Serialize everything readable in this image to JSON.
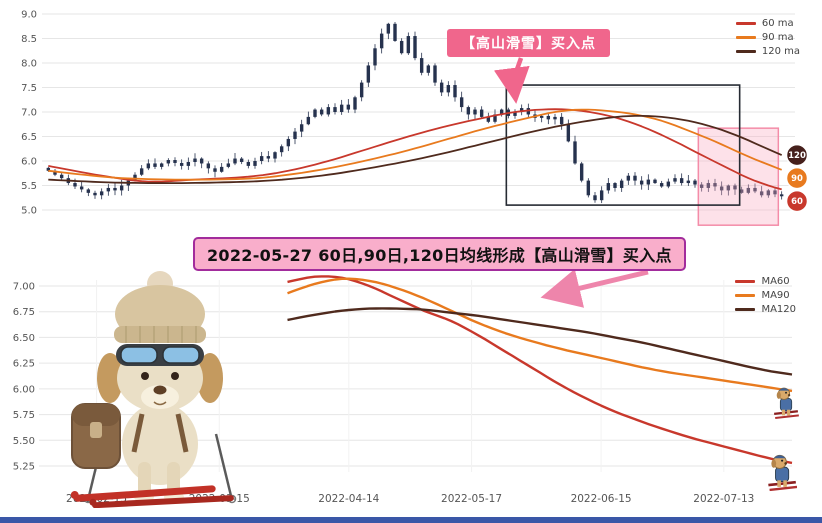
{
  "page": {
    "bg": "#ffffff",
    "footer_strip_color": "#3a57a7"
  },
  "top_annotation": {
    "text": "【高山滑雪】买入点",
    "bg": "#f0668c",
    "text_color": "#ffffff",
    "arrow_color": "#f0668c"
  },
  "middle_banner": {
    "text": "2022-05-27 60日,90日,120日均线形成【高山滑雪】买入点",
    "bg": "#f9aecb",
    "border": "#a22c9c",
    "text_color": "#111111",
    "arrow_color": "#ee85ab"
  },
  "illustrations": {
    "main_dog_alt": "puppy wearing knit hat, ski goggles and backpack standing on red skis",
    "mini_dog_alt": "small skiing dog figure"
  },
  "chart_data": [
    {
      "type": "candlestick",
      "title": "",
      "xlabel": "",
      "ylabel": "",
      "ylim": [
        4.6,
        9.0
      ],
      "yticks": [
        5.0,
        5.5,
        6.0,
        6.5,
        7.0,
        7.5,
        8.0,
        8.5,
        9.0
      ],
      "tick_decimals": 1,
      "grid": true,
      "legend_position": "top-right",
      "candle_color": "#26324e",
      "closes": [
        5.8,
        5.72,
        5.65,
        5.55,
        5.48,
        5.42,
        5.35,
        5.3,
        5.38,
        5.45,
        5.4,
        5.5,
        5.6,
        5.72,
        5.85,
        5.95,
        5.88,
        5.95,
        6.02,
        5.96,
        5.9,
        5.98,
        6.05,
        5.95,
        5.85,
        5.78,
        5.88,
        5.95,
        6.05,
        5.98,
        5.9,
        6.0,
        6.1,
        6.05,
        6.18,
        6.3,
        6.45,
        6.6,
        6.75,
        6.9,
        7.05,
        6.95,
        7.1,
        7.0,
        7.15,
        7.05,
        7.3,
        7.6,
        7.95,
        8.3,
        8.6,
        8.8,
        8.45,
        8.2,
        8.55,
        8.1,
        7.8,
        7.95,
        7.6,
        7.4,
        7.55,
        7.3,
        7.1,
        6.95,
        7.05,
        6.9,
        6.8,
        6.95,
        7.05,
        6.92,
        7.0,
        7.08,
        6.95,
        6.88,
        6.92,
        6.85,
        6.9,
        6.75,
        6.4,
        5.95,
        5.6,
        5.3,
        5.2,
        5.4,
        5.55,
        5.45,
        5.6,
        5.7,
        5.6,
        5.52,
        5.62,
        5.55,
        5.48,
        5.58,
        5.65,
        5.55,
        5.6,
        5.52,
        5.45,
        5.55,
        5.48,
        5.4,
        5.5,
        5.42,
        5.35,
        5.45,
        5.38,
        5.3,
        5.4,
        5.32,
        5.28
      ],
      "series": [
        {
          "name": "60 ma",
          "color": "#c8382c",
          "points": [
            [
              0,
              5.9
            ],
            [
              8,
              5.7
            ],
            [
              15,
              5.58
            ],
            [
              22,
              5.62
            ],
            [
              30,
              5.68
            ],
            [
              36,
              5.8
            ],
            [
              42,
              6.0
            ],
            [
              48,
              6.25
            ],
            [
              54,
              6.5
            ],
            [
              60,
              6.72
            ],
            [
              66,
              6.9
            ],
            [
              70,
              7.0
            ],
            [
              74,
              7.05
            ],
            [
              78,
              7.05
            ],
            [
              82,
              6.98
            ],
            [
              86,
              6.85
            ],
            [
              90,
              6.65
            ],
            [
              94,
              6.4
            ],
            [
              98,
              6.12
            ],
            [
              102,
              5.85
            ],
            [
              105,
              5.65
            ],
            [
              108,
              5.5
            ],
            [
              110,
              5.42
            ]
          ]
        },
        {
          "name": "90 ma",
          "color": "#e87a1e",
          "points": [
            [
              0,
              5.8
            ],
            [
              10,
              5.66
            ],
            [
              20,
              5.62
            ],
            [
              30,
              5.64
            ],
            [
              36,
              5.72
            ],
            [
              42,
              5.85
            ],
            [
              48,
              6.02
            ],
            [
              54,
              6.22
            ],
            [
              60,
              6.45
            ],
            [
              66,
              6.68
            ],
            [
              72,
              6.88
            ],
            [
              76,
              7.0
            ],
            [
              80,
              7.05
            ],
            [
              84,
              7.02
            ],
            [
              88,
              6.95
            ],
            [
              92,
              6.82
            ],
            [
              96,
              6.62
            ],
            [
              100,
              6.4
            ],
            [
              104,
              6.15
            ],
            [
              107,
              5.98
            ],
            [
              110,
              5.82
            ]
          ]
        },
        {
          "name": "120 ma",
          "color": "#4f2a1d",
          "points": [
            [
              0,
              5.62
            ],
            [
              10,
              5.56
            ],
            [
              20,
              5.55
            ],
            [
              30,
              5.58
            ],
            [
              36,
              5.63
            ],
            [
              42,
              5.72
            ],
            [
              48,
              5.85
            ],
            [
              54,
              6.0
            ],
            [
              60,
              6.18
            ],
            [
              66,
              6.38
            ],
            [
              72,
              6.58
            ],
            [
              78,
              6.75
            ],
            [
              84,
              6.88
            ],
            [
              88,
              6.92
            ],
            [
              92,
              6.9
            ],
            [
              96,
              6.82
            ],
            [
              100,
              6.68
            ],
            [
              104,
              6.48
            ],
            [
              107,
              6.3
            ],
            [
              110,
              6.12
            ]
          ]
        }
      ],
      "highlight_box": {
        "x_index": [
          69,
          104
        ],
        "y_values": [
          5.1,
          7.55
        ],
        "stroke": "#262b33"
      },
      "pink_box": {
        "x_index": [
          97.5,
          109.5
        ],
        "y_values": [
          4.69,
          6.67
        ],
        "fill": "#f8a8bf",
        "stroke": "#f48ca8",
        "opacity": 0.35
      },
      "badges": [
        {
          "label": "120",
          "value": 6.12,
          "color": "#46201c"
        },
        {
          "label": "90",
          "value": 5.82,
          "color": "#e87a1e"
        },
        {
          "label": "60",
          "value": 5.42,
          "color": "#c8382c"
        }
      ],
      "buy_arrow_index": 70
    },
    {
      "type": "line",
      "title": "",
      "xlabel": "",
      "ylabel": "",
      "ylim": [
        5.2,
        7.1
      ],
      "yticks": [
        5.25,
        5.5,
        5.75,
        6.0,
        6.25,
        6.5,
        6.75,
        7.0
      ],
      "tick_decimals": 2,
      "grid": true,
      "legend_position": "top-right",
      "x_range": [
        0,
        110
      ],
      "x_ticks": [
        {
          "index": 8,
          "label": "2022-02-15"
        },
        {
          "index": 26,
          "label": "2022-03-15"
        },
        {
          "index": 45,
          "label": "2022-04-14"
        },
        {
          "index": 63,
          "label": "2022-05-17"
        },
        {
          "index": 82,
          "label": "2022-06-15"
        },
        {
          "index": 100,
          "label": "2022-07-13"
        }
      ],
      "series": [
        {
          "name": "MA60",
          "color": "#c8382c",
          "points": [
            [
              36,
              7.04
            ],
            [
              40,
              7.09
            ],
            [
              44,
              7.08
            ],
            [
              48,
              7.0
            ],
            [
              52,
              6.88
            ],
            [
              56,
              6.76
            ],
            [
              60,
              6.66
            ],
            [
              64,
              6.52
            ],
            [
              68,
              6.36
            ],
            [
              72,
              6.2
            ],
            [
              76,
              6.04
            ],
            [
              80,
              5.9
            ],
            [
              84,
              5.78
            ],
            [
              88,
              5.68
            ],
            [
              92,
              5.59
            ],
            [
              96,
              5.51
            ],
            [
              100,
              5.44
            ],
            [
              104,
              5.37
            ],
            [
              107,
              5.32
            ],
            [
              110,
              5.28
            ]
          ]
        },
        {
          "name": "MA90",
          "color": "#e87a1e",
          "points": [
            [
              36,
              6.93
            ],
            [
              40,
              7.02
            ],
            [
              44,
              7.07
            ],
            [
              48,
              7.05
            ],
            [
              52,
              6.98
            ],
            [
              56,
              6.88
            ],
            [
              60,
              6.76
            ],
            [
              64,
              6.64
            ],
            [
              68,
              6.54
            ],
            [
              72,
              6.46
            ],
            [
              76,
              6.39
            ],
            [
              80,
              6.33
            ],
            [
              84,
              6.27
            ],
            [
              88,
              6.21
            ],
            [
              92,
              6.16
            ],
            [
              96,
              6.12
            ],
            [
              100,
              6.08
            ],
            [
              104,
              6.04
            ],
            [
              107,
              6.01
            ],
            [
              110,
              5.98
            ]
          ]
        },
        {
          "name": "MA120",
          "color": "#4f2a1d",
          "points": [
            [
              36,
              6.67
            ],
            [
              40,
              6.72
            ],
            [
              44,
              6.76
            ],
            [
              48,
              6.78
            ],
            [
              52,
              6.78
            ],
            [
              56,
              6.77
            ],
            [
              60,
              6.74
            ],
            [
              64,
              6.71
            ],
            [
              68,
              6.67
            ],
            [
              72,
              6.63
            ],
            [
              76,
              6.59
            ],
            [
              80,
              6.55
            ],
            [
              84,
              6.5
            ],
            [
              88,
              6.45
            ],
            [
              92,
              6.39
            ],
            [
              96,
              6.33
            ],
            [
              100,
              6.27
            ],
            [
              104,
              6.21
            ],
            [
              107,
              6.17
            ],
            [
              110,
              6.14
            ]
          ]
        }
      ]
    }
  ]
}
